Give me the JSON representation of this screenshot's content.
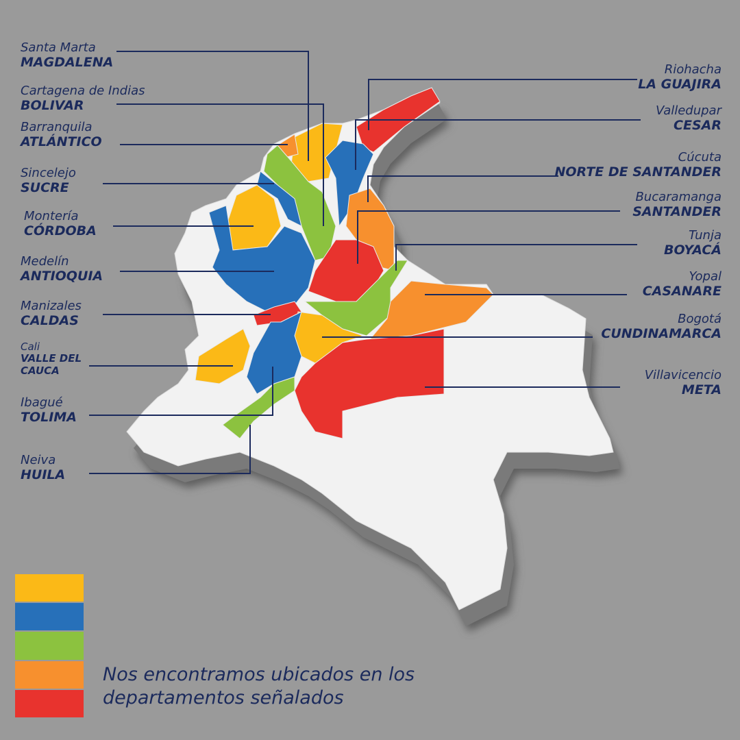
{
  "labels": [
    {
      "city": "Santa Marta",
      "department": "MAGDALENA"
    },
    {
      "city": "Cartagena de Indias",
      "department": "BOLIVAR"
    },
    {
      "city": "Barranquila",
      "department": "ATLÁNTICO"
    },
    {
      "city": "Sincelejo",
      "department": "SUCRE"
    },
    {
      "city": "Montería",
      "department": "CÓRDOBA"
    },
    {
      "city": "Medelín",
      "department": "ANTIOQUIA"
    },
    {
      "city": "Manizales",
      "department": "CALDAS"
    },
    {
      "city": "Cali",
      "department": "VALLE DEL CAUCA"
    },
    {
      "city": "Ibagué",
      "department": "TOLIMA"
    },
    {
      "city": "Neiva",
      "department": "HUILA"
    },
    {
      "city": "Riohacha",
      "department": "LA GUAJIRA"
    },
    {
      "city": "Valledupar",
      "department": "CESAR"
    },
    {
      "city": "Cúcuta",
      "department": "NORTE DE SANTANDER"
    },
    {
      "city": "Bucaramanga",
      "department": "SANTANDER"
    },
    {
      "city": "Tunja",
      "department": "BOYACÁ"
    },
    {
      "city": "Yopal",
      "department": "CASANARE"
    },
    {
      "city": "Bogotá",
      "department": "CUNDINAMARCA"
    },
    {
      "city": "Villavicencio",
      "department": "META"
    }
  ],
  "caption": "Nos encontramos ubicados en los departamentos señalados"
}
